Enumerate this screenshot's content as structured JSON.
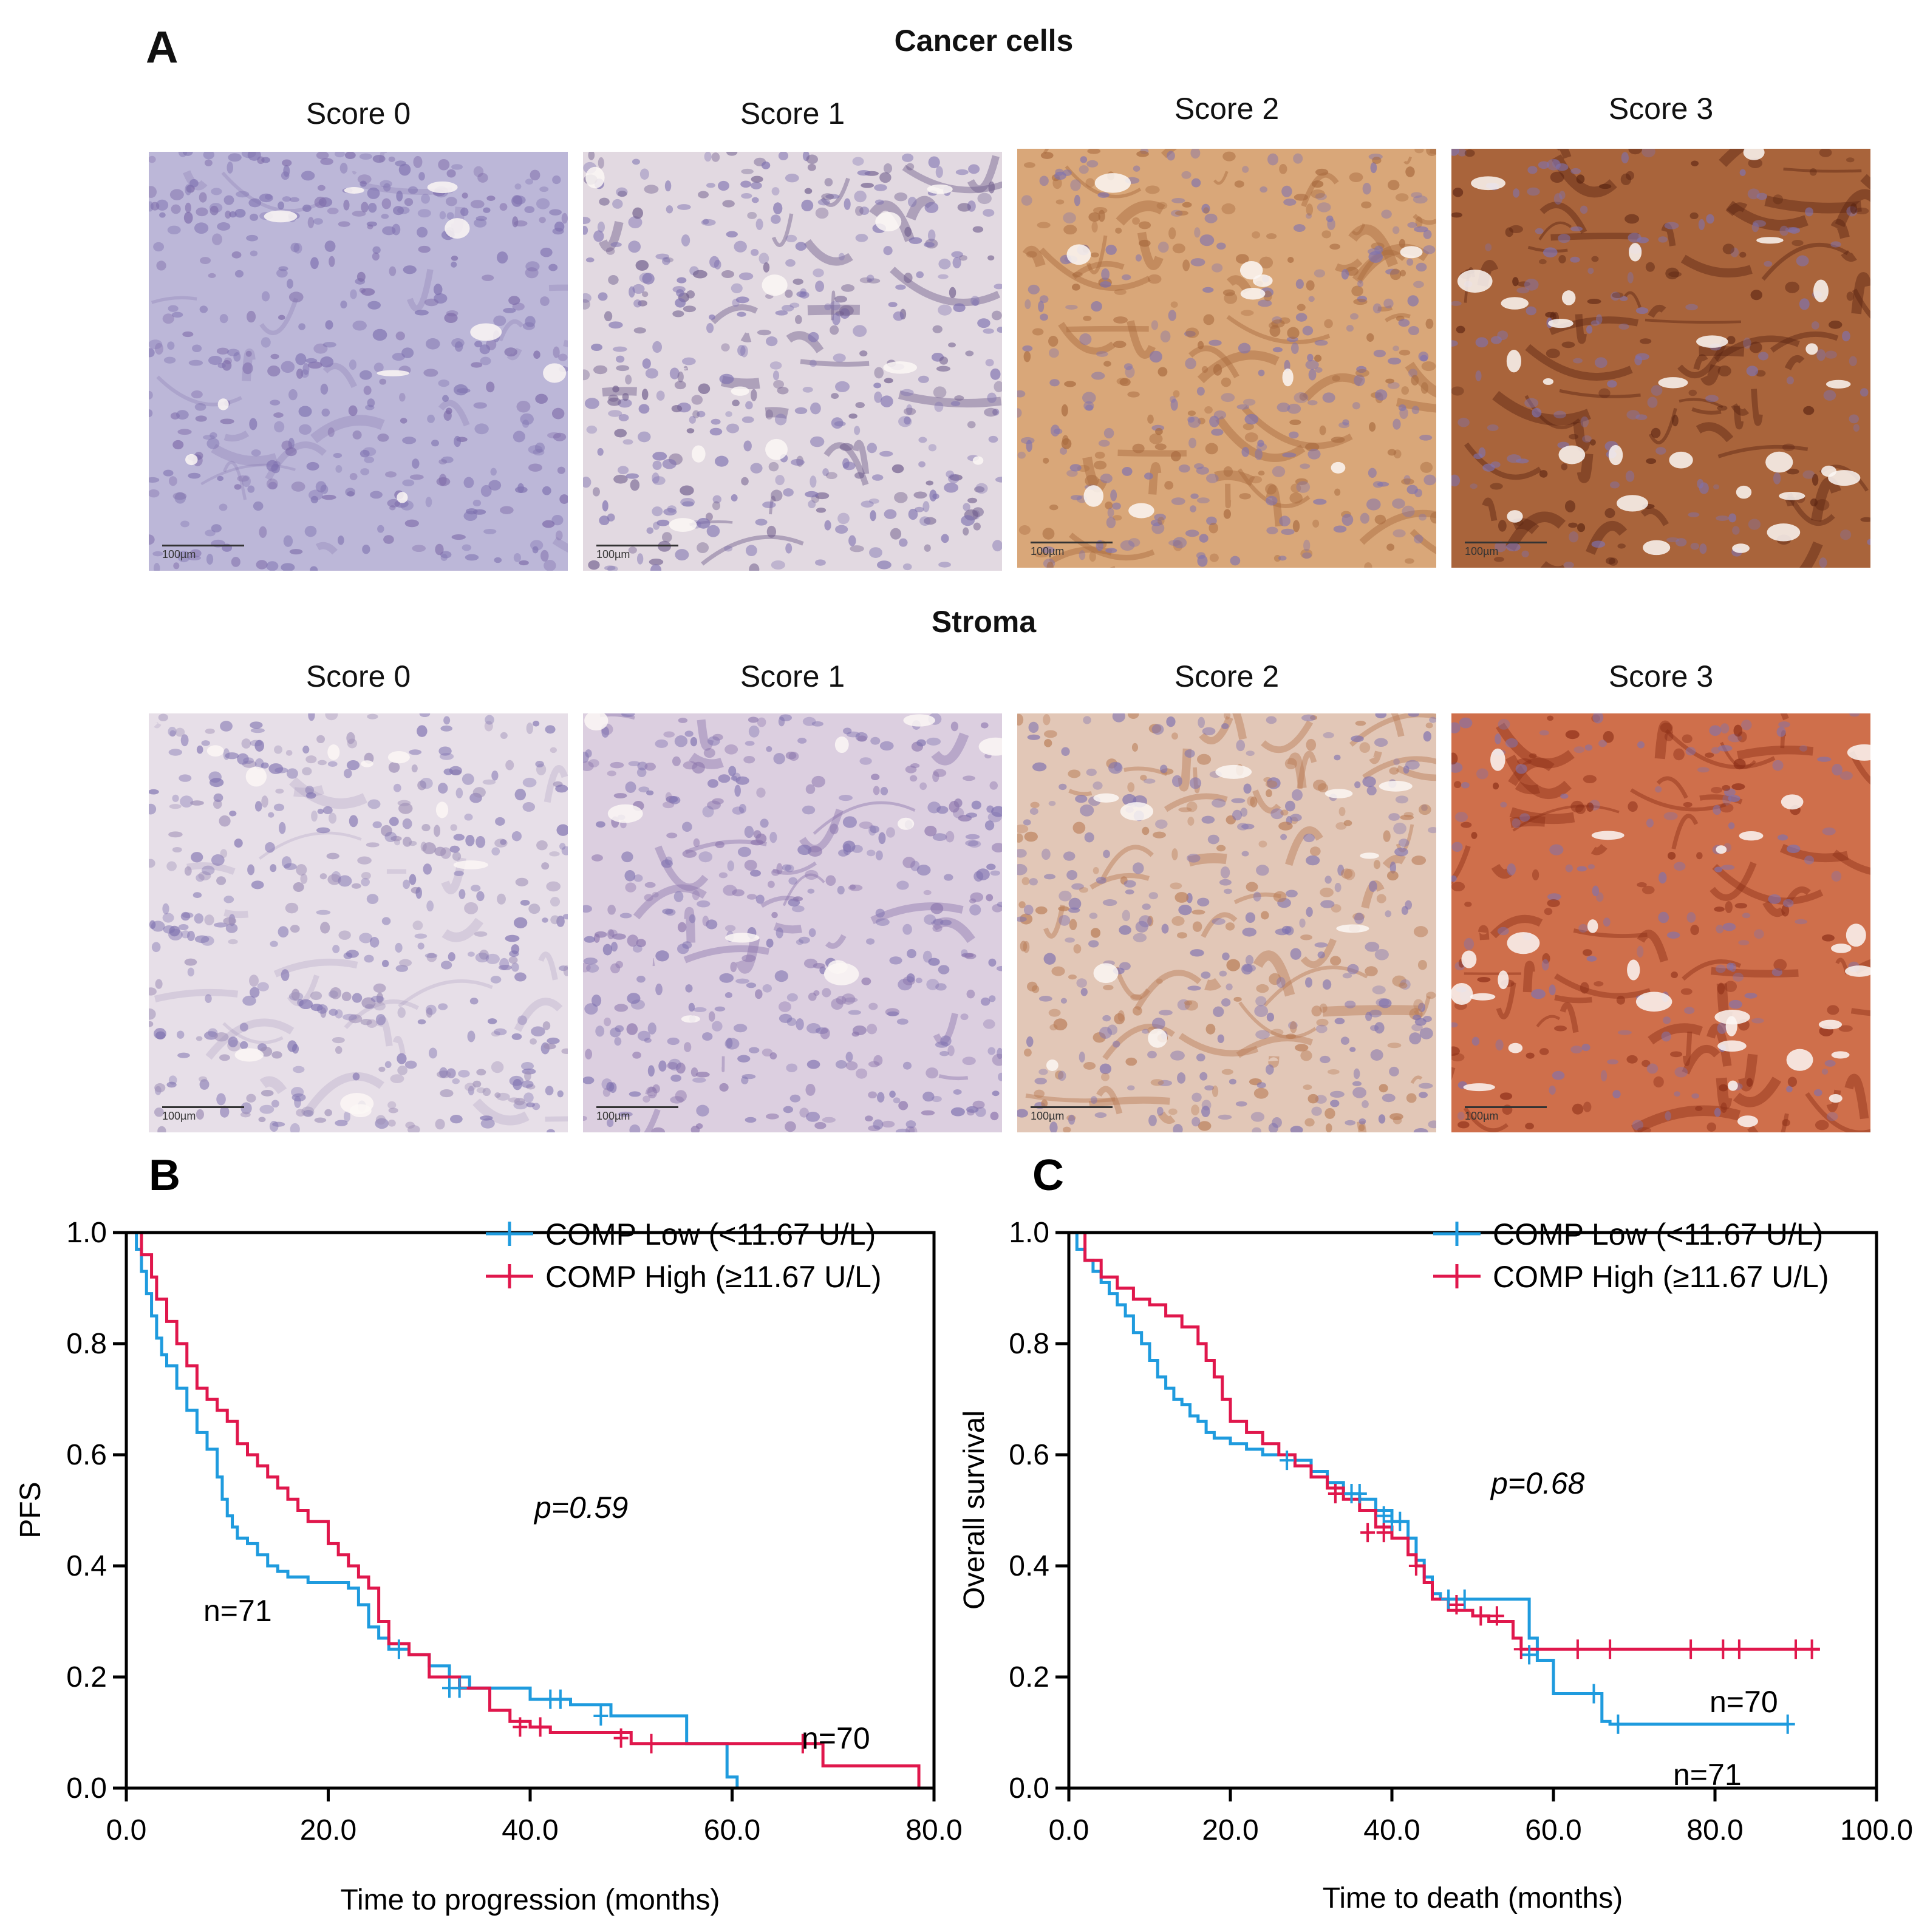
{
  "panel_a": {
    "letter": "A",
    "sections": [
      {
        "title": "Cancer cells",
        "images": [
          {
            "label": "Score 0",
            "scale": "100µm",
            "tone": "#bcb7d8",
            "accent": "#7d6aa8",
            "stain": "none"
          },
          {
            "label": "Score 1",
            "scale": "100µm",
            "tone": "#e2d9e1",
            "accent": "#6f5d8c",
            "stain": "weak"
          },
          {
            "label": "Score 2",
            "scale": "100µm",
            "tone": "#d9a779",
            "accent": "#a86a3f",
            "stain": "moderate"
          },
          {
            "label": "Score 3",
            "scale": "100µm",
            "tone": "#a9643b",
            "accent": "#5b2412",
            "stain": "strong"
          }
        ]
      },
      {
        "title": "Stroma",
        "images": [
          {
            "label": "Score 0",
            "scale": "100µm",
            "tone": "#e7dfe8",
            "accent": "#9e8fb6",
            "stain": "none"
          },
          {
            "label": "Score 1",
            "scale": "100µm",
            "tone": "#dccfe0",
            "accent": "#8c76ad",
            "stain": "weak"
          },
          {
            "label": "Score 2",
            "scale": "100µm",
            "tone": "#e2c7b7",
            "accent": "#b87b55",
            "stain": "moderate"
          },
          {
            "label": "Score 3",
            "scale": "100µm",
            "tone": "#cf6f4b",
            "accent": "#8c2e17",
            "stain": "strong"
          }
        ]
      }
    ]
  },
  "panel_b": {
    "letter": "B",
    "pvalue": "p=0.59",
    "n_low": "n=71",
    "n_high": "n=70",
    "legend_low": "COMP Low (<11.67 U/L)",
    "legend_high": "COMP High (≥11.67 U/L)",
    "xlabel": "Time to progression  (months)",
    "ylabel": "PFS"
  },
  "panel_c": {
    "letter": "C",
    "pvalue": "p=0.68",
    "n_low": "n=71",
    "n_high": "n=70",
    "legend_low": "COMP Low (<11.67 U/L)",
    "legend_high": "COMP High (≥11.67 U/L)",
    "xlabel": "Time to death (months)",
    "ylabel": "Overall survival"
  },
  "colors": {
    "low": "#1f9bde",
    "high": "#e0174c"
  },
  "chart_data": [
    {
      "type": "line",
      "step": true,
      "xlabel": "Time to progression  (months)",
      "ylabel": "PFS",
      "xlim": [
        0,
        80
      ],
      "ylim": [
        0,
        1.0
      ],
      "xticks": [
        0,
        20,
        40,
        60,
        80
      ],
      "xtick_labels": [
        "0.0",
        "20.0",
        "40.0",
        "60.0",
        "80.0"
      ],
      "yticks": [
        0,
        0.2,
        0.4,
        0.6,
        0.8,
        1.0
      ],
      "ytick_labels": [
        "0.0",
        "0.2",
        "0.4",
        "0.6",
        "0.8",
        "1.0"
      ],
      "legend": "top-right",
      "series": [
        {
          "name": "COMP Low (<11.67 U/L)",
          "color": "#1f9bde",
          "x": [
            0,
            1,
            1.5,
            2,
            2.5,
            3,
            3.5,
            4,
            5,
            6,
            7,
            8,
            9,
            9.5,
            10,
            10.5,
            11,
            12,
            13,
            14,
            15,
            16,
            18,
            20,
            22,
            23,
            24,
            25,
            26,
            28,
            30,
            32,
            34,
            40,
            44,
            48,
            55.5,
            59.5,
            60.5
          ],
          "y": [
            1.0,
            0.97,
            0.93,
            0.89,
            0.85,
            0.81,
            0.78,
            0.76,
            0.72,
            0.68,
            0.64,
            0.61,
            0.56,
            0.52,
            0.49,
            0.47,
            0.45,
            0.44,
            0.42,
            0.4,
            0.39,
            0.38,
            0.37,
            0.37,
            0.36,
            0.33,
            0.29,
            0.27,
            0.25,
            0.24,
            0.22,
            0.2,
            0.18,
            0.16,
            0.15,
            0.13,
            0.08,
            0.02,
            0.0
          ],
          "censor_x": [
            27,
            32,
            33,
            42,
            43,
            47
          ],
          "censor_y": [
            0.25,
            0.18,
            0.18,
            0.16,
            0.16,
            0.13
          ]
        },
        {
          "name": "COMP High (≥11.67 U/L)",
          "color": "#e0174c",
          "x": [
            0,
            1.5,
            2.5,
            3,
            4,
            5,
            6,
            7,
            8,
            9,
            10,
            11,
            12,
            13,
            14,
            15,
            16,
            17,
            18,
            20,
            21,
            22,
            23,
            24,
            25,
            26,
            28,
            30,
            33,
            36,
            38,
            40,
            42,
            50,
            69,
            78.5
          ],
          "y": [
            1.0,
            0.96,
            0.92,
            0.88,
            0.84,
            0.8,
            0.76,
            0.72,
            0.7,
            0.68,
            0.66,
            0.62,
            0.6,
            0.58,
            0.56,
            0.54,
            0.52,
            0.5,
            0.48,
            0.44,
            0.42,
            0.4,
            0.38,
            0.36,
            0.3,
            0.26,
            0.24,
            0.2,
            0.18,
            0.14,
            0.12,
            0.11,
            0.1,
            0.08,
            0.04,
            0.0
          ],
          "censor_x": [
            39,
            41,
            49,
            52,
            67
          ],
          "censor_y": [
            0.11,
            0.11,
            0.09,
            0.08,
            0.08
          ]
        }
      ]
    },
    {
      "type": "line",
      "step": true,
      "xlabel": "Time to death (months)",
      "ylabel": "Overall survival",
      "xlim": [
        0,
        100
      ],
      "ylim": [
        0,
        1.0
      ],
      "xticks": [
        0,
        20,
        40,
        60,
        80,
        100
      ],
      "xtick_labels": [
        "0.0",
        "20.0",
        "40.0",
        "60.0",
        "80.0",
        "100.0"
      ],
      "yticks": [
        0,
        0.2,
        0.4,
        0.6,
        0.8,
        1.0
      ],
      "ytick_labels": [
        "0.0",
        "0.2",
        "0.4",
        "0.6",
        "0.8",
        "1.0"
      ],
      "legend": "top-right",
      "series": [
        {
          "name": "COMP Low (<11.67 U/L)",
          "color": "#1f9bde",
          "x": [
            0,
            1,
            2,
            3,
            4,
            5,
            6,
            7,
            8,
            9,
            10,
            11,
            12,
            13,
            14,
            15,
            16,
            17,
            18,
            20,
            22,
            24,
            26,
            28,
            30,
            32,
            34,
            36,
            38,
            40,
            42,
            43,
            44,
            45,
            46,
            50,
            57,
            58,
            60,
            66,
            67,
            89
          ],
          "y": [
            1.0,
            0.97,
            0.95,
            0.93,
            0.91,
            0.89,
            0.87,
            0.85,
            0.82,
            0.8,
            0.77,
            0.74,
            0.72,
            0.7,
            0.69,
            0.67,
            0.66,
            0.64,
            0.63,
            0.62,
            0.61,
            0.6,
            0.6,
            0.59,
            0.57,
            0.55,
            0.53,
            0.52,
            0.5,
            0.48,
            0.45,
            0.41,
            0.38,
            0.35,
            0.34,
            0.34,
            0.27,
            0.23,
            0.17,
            0.12,
            0.115,
            0.115
          ],
          "censor_x": [
            27,
            33,
            35,
            36,
            39,
            40,
            41,
            47,
            49,
            57,
            65,
            68,
            89
          ],
          "censor_y": [
            0.59,
            0.53,
            0.53,
            0.53,
            0.49,
            0.48,
            0.48,
            0.34,
            0.34,
            0.24,
            0.17,
            0.115,
            0.115
          ]
        },
        {
          "name": "COMP High (≥11.67 U/L)",
          "color": "#e0174c",
          "x": [
            0,
            2,
            4,
            6,
            8,
            10,
            12,
            14,
            16,
            17,
            18,
            19,
            20,
            22,
            24,
            26,
            28,
            30,
            32,
            34,
            36,
            38,
            40,
            42,
            43,
            44,
            45,
            47,
            50,
            52,
            55,
            56,
            58,
            93
          ],
          "y": [
            1.0,
            0.95,
            0.92,
            0.9,
            0.88,
            0.87,
            0.85,
            0.83,
            0.8,
            0.77,
            0.74,
            0.7,
            0.66,
            0.64,
            0.62,
            0.6,
            0.58,
            0.56,
            0.54,
            0.52,
            0.5,
            0.47,
            0.45,
            0.42,
            0.4,
            0.37,
            0.34,
            0.32,
            0.31,
            0.3,
            0.27,
            0.25,
            0.25,
            0.25
          ],
          "censor_x": [
            33,
            37,
            39,
            43,
            48,
            51,
            53,
            56,
            63,
            67,
            77,
            81,
            83,
            90,
            92
          ],
          "censor_y": [
            0.53,
            0.46,
            0.46,
            0.4,
            0.33,
            0.31,
            0.31,
            0.25,
            0.25,
            0.25,
            0.25,
            0.25,
            0.25,
            0.25,
            0.25
          ]
        }
      ]
    }
  ]
}
